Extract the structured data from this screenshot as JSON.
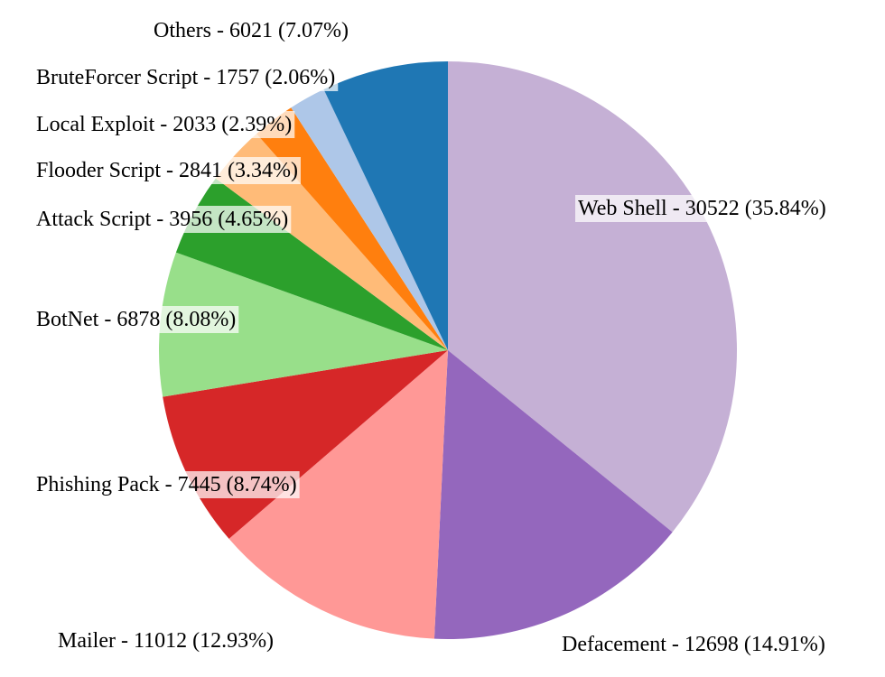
{
  "chart_data": {
    "type": "pie",
    "start": "12 o'clock",
    "direction": "clockwise",
    "slices": [
      {
        "label": "Web Shell - 30522 (35.84%)",
        "name": "Web Shell",
        "value": 30522,
        "percent": 35.84,
        "color": "#c5b0d5"
      },
      {
        "label": "Defacement - 12698 (14.91%)",
        "name": "Defacement",
        "value": 12698,
        "percent": 14.91,
        "color": "#9467bd"
      },
      {
        "label": "Mailer - 11012 (12.93%)",
        "name": "Mailer",
        "value": 11012,
        "percent": 12.93,
        "color": "#ff9896"
      },
      {
        "label": "Phishing Pack - 7445 (8.74%)",
        "name": "Phishing Pack",
        "value": 7445,
        "percent": 8.74,
        "color": "#d62728"
      },
      {
        "label": "BotNet - 6878 (8.08%)",
        "name": "BotNet",
        "value": 6878,
        "percent": 8.08,
        "color": "#98df8a"
      },
      {
        "label": "Attack Script - 3956 (4.65%)",
        "name": "Attack Script",
        "value": 3956,
        "percent": 4.65,
        "color": "#2ca02c"
      },
      {
        "label": "Flooder Script - 2841 (3.34%)",
        "name": "Flooder Script",
        "value": 2841,
        "percent": 3.34,
        "color": "#ffbb78"
      },
      {
        "label": "Local Exploit - 2033 (2.39%)",
        "name": "Local Exploit",
        "value": 2033,
        "percent": 2.39,
        "color": "#ff7f0e"
      },
      {
        "label": "BruteForcer Script - 1757 (2.06%)",
        "name": "BruteForcer Script",
        "value": 1757,
        "percent": 2.06,
        "color": "#aec7e8"
      },
      {
        "label": "Others - 6021 (7.07%)",
        "name": "Others",
        "value": 6021,
        "percent": 7.07,
        "color": "#1f77b4"
      }
    ]
  }
}
